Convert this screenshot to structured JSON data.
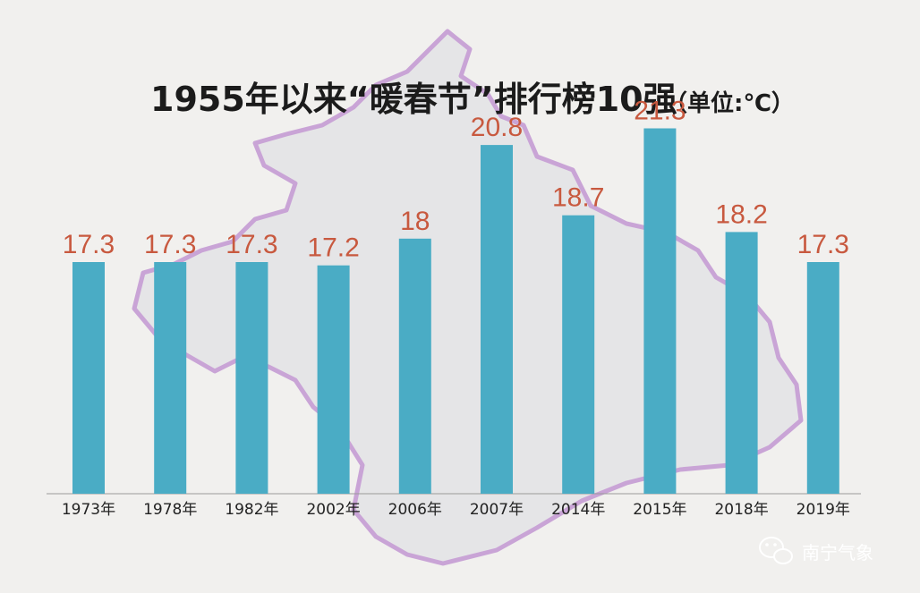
{
  "title": "1955年以来“暖春节”排行榜10强",
  "unit": "（单位:℃）",
  "watermark": "南宁气象",
  "colors": {
    "bar": "#4aacc5",
    "value_label": "#c8593f",
    "map_fill": "#e5e5e7",
    "map_border": "#c9a4d6",
    "background": "#f1f0ee"
  },
  "chart_data": {
    "type": "bar",
    "title": "1955年以来“暖春节”排行榜10强",
    "unit": "单位:℃",
    "categories": [
      "1973年",
      "1978年",
      "1982年",
      "2002年",
      "2006年",
      "2007年",
      "2014年",
      "2015年",
      "2018年",
      "2019年"
    ],
    "values": [
      17.3,
      17.3,
      17.3,
      17.2,
      18,
      20.8,
      18.7,
      21.3,
      18.2,
      17.3
    ],
    "value_labels": [
      "17.3",
      "17.3",
      "17.3",
      "17.2",
      "18",
      "20.8",
      "18.7",
      "21.3",
      "18.2",
      "17.3"
    ],
    "xlabel": "",
    "ylabel": "",
    "grid": false,
    "legend": "none"
  }
}
